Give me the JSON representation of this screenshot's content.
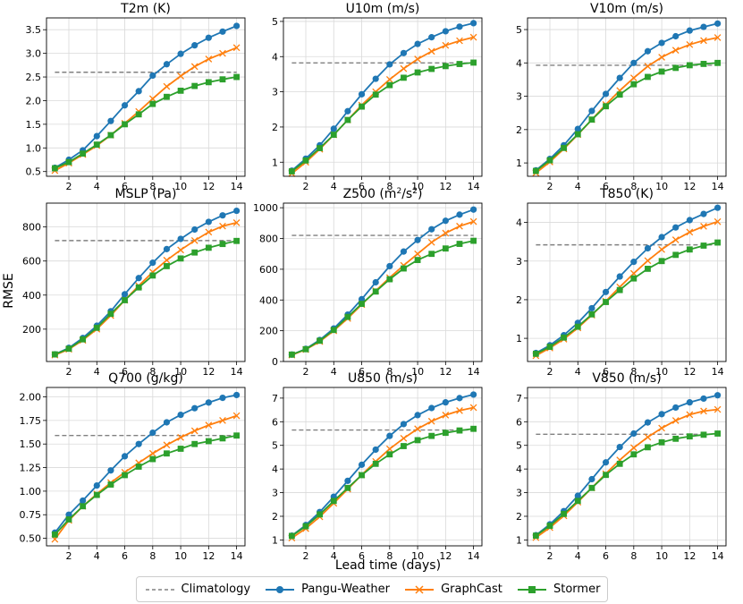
{
  "figure": {
    "ylabel": "RMSE",
    "xlabel": "Lead time (days)"
  },
  "legend": [
    {
      "name": "Climatology",
      "color": "#808080",
      "style": "dashed",
      "marker": "none"
    },
    {
      "name": "Pangu-Weather",
      "color": "#1f77b4",
      "style": "solid",
      "marker": "circle"
    },
    {
      "name": "GraphCast",
      "color": "#ff7f0e",
      "style": "solid",
      "marker": "x"
    },
    {
      "name": "Stormer",
      "color": "#2ca02c",
      "style": "solid",
      "marker": "square"
    }
  ],
  "chart_data": [
    {
      "type": "line",
      "title": "T2m (K)",
      "title_sup": "",
      "title_after": "",
      "xlim": [
        0.4,
        14.6
      ],
      "ylim": [
        0.4,
        3.75
      ],
      "xticks": [
        2,
        4,
        6,
        8,
        10,
        12,
        14
      ],
      "yticks": [
        0.5,
        1.0,
        1.5,
        2.0,
        2.5,
        3.0,
        3.5
      ],
      "ytick_labels": [
        "0.5",
        "1.0",
        "1.5",
        "2.0",
        "2.5",
        "3.0",
        "3.5"
      ],
      "x": [
        1,
        2,
        3,
        4,
        5,
        6,
        7,
        8,
        9,
        10,
        11,
        12,
        13,
        14
      ],
      "climatology": 2.6,
      "series": [
        {
          "name": "Pangu-Weather",
          "values": [
            0.58,
            0.75,
            0.95,
            1.25,
            1.57,
            1.9,
            2.2,
            2.53,
            2.77,
            2.99,
            3.17,
            3.33,
            3.46,
            3.58
          ]
        },
        {
          "name": "GraphCast",
          "values": [
            0.52,
            0.68,
            0.86,
            1.05,
            1.27,
            1.52,
            1.77,
            2.04,
            2.3,
            2.52,
            2.72,
            2.88,
            3.0,
            3.12
          ]
        },
        {
          "name": "Stormer",
          "values": [
            0.57,
            0.7,
            0.88,
            1.07,
            1.27,
            1.5,
            1.71,
            1.93,
            2.08,
            2.21,
            2.31,
            2.39,
            2.45,
            2.5
          ]
        }
      ]
    },
    {
      "type": "line",
      "title": "U10m (m/s)",
      "title_sup": "",
      "title_after": "",
      "xlim": [
        0.4,
        14.6
      ],
      "ylim": [
        0.6,
        5.1
      ],
      "xticks": [
        2,
        4,
        6,
        8,
        10,
        12,
        14
      ],
      "yticks": [
        1,
        2,
        3,
        4,
        5
      ],
      "ytick_labels": [
        "1",
        "2",
        "3",
        "4",
        "5"
      ],
      "x": [
        1,
        2,
        3,
        4,
        5,
        6,
        7,
        8,
        9,
        10,
        11,
        12,
        13,
        14
      ],
      "climatology": 3.82,
      "series": [
        {
          "name": "Pangu-Weather",
          "values": [
            0.76,
            1.1,
            1.48,
            1.95,
            2.45,
            2.93,
            3.37,
            3.78,
            4.1,
            4.36,
            4.55,
            4.72,
            4.85,
            4.95
          ]
        },
        {
          "name": "GraphCast",
          "values": [
            0.68,
            1.0,
            1.37,
            1.78,
            2.2,
            2.62,
            3.0,
            3.35,
            3.66,
            3.93,
            4.15,
            4.32,
            4.45,
            4.55
          ]
        },
        {
          "name": "Stormer",
          "values": [
            0.74,
            1.05,
            1.4,
            1.78,
            2.2,
            2.58,
            2.92,
            3.19,
            3.4,
            3.55,
            3.65,
            3.73,
            3.79,
            3.83
          ]
        }
      ]
    },
    {
      "type": "line",
      "title": "V10m (m/s)",
      "title_sup": "",
      "title_after": "",
      "xlim": [
        0.4,
        14.6
      ],
      "ylim": [
        0.6,
        5.35
      ],
      "xticks": [
        2,
        4,
        6,
        8,
        10,
        12,
        14
      ],
      "yticks": [
        1,
        2,
        3,
        4,
        5
      ],
      "ytick_labels": [
        "1",
        "2",
        "3",
        "4",
        "5"
      ],
      "x": [
        1,
        2,
        3,
        4,
        5,
        6,
        7,
        8,
        9,
        10,
        11,
        12,
        13,
        14
      ],
      "climatology": 3.93,
      "series": [
        {
          "name": "Pangu-Weather",
          "values": [
            0.78,
            1.12,
            1.53,
            2.02,
            2.56,
            3.07,
            3.55,
            4.0,
            4.35,
            4.6,
            4.8,
            4.97,
            5.08,
            5.18
          ]
        },
        {
          "name": "GraphCast",
          "values": [
            0.7,
            1.03,
            1.42,
            1.85,
            2.3,
            2.75,
            3.17,
            3.55,
            3.9,
            4.17,
            4.38,
            4.55,
            4.67,
            4.76
          ]
        },
        {
          "name": "Stormer",
          "values": [
            0.76,
            1.08,
            1.45,
            1.86,
            2.3,
            2.7,
            3.05,
            3.36,
            3.58,
            3.74,
            3.85,
            3.93,
            3.97,
            4.0
          ]
        }
      ]
    },
    {
      "type": "line",
      "title": "MSLP (Pa)",
      "title_sup": "",
      "title_after": "",
      "xlim": [
        0.4,
        14.6
      ],
      "ylim": [
        10,
        940
      ],
      "xticks": [
        2,
        4,
        6,
        8,
        10,
        12,
        14
      ],
      "yticks": [
        200,
        400,
        600,
        800
      ],
      "ytick_labels": [
        "200",
        "400",
        "600",
        "800"
      ],
      "x": [
        1,
        2,
        3,
        4,
        5,
        6,
        7,
        8,
        9,
        10,
        11,
        12,
        13,
        14
      ],
      "climatology": 720,
      "series": [
        {
          "name": "Pangu-Weather",
          "values": [
            52,
            90,
            148,
            220,
            305,
            405,
            500,
            590,
            670,
            730,
            785,
            830,
            868,
            895
          ]
        },
        {
          "name": "GraphCast",
          "values": [
            48,
            82,
            135,
            200,
            280,
            370,
            455,
            535,
            605,
            665,
            720,
            770,
            805,
            825
          ]
        },
        {
          "name": "Stormer",
          "values": [
            52,
            85,
            140,
            208,
            290,
            370,
            445,
            515,
            570,
            615,
            650,
            678,
            700,
            718
          ]
        }
      ]
    },
    {
      "type": "line",
      "title": "Z500 (m",
      "title_sup": "2",
      "title_after": "/s",
      "title_sup2": "2",
      "title_end": ")",
      "xlim": [
        0.4,
        14.6
      ],
      "ylim": [
        0,
        1030
      ],
      "xticks": [
        2,
        4,
        6,
        8,
        10,
        12,
        14
      ],
      "yticks": [
        0,
        200,
        400,
        600,
        800,
        1000
      ],
      "ytick_labels": [
        "0",
        "200",
        "400",
        "600",
        "800",
        "1000"
      ],
      "x": [
        1,
        2,
        3,
        4,
        5,
        6,
        7,
        8,
        9,
        10,
        11,
        12,
        13,
        14
      ],
      "climatology": 820,
      "series": [
        {
          "name": "Pangu-Weather",
          "values": [
            45,
            82,
            140,
            215,
            305,
            405,
            515,
            620,
            715,
            790,
            860,
            915,
            955,
            988
          ]
        },
        {
          "name": "GraphCast",
          "values": [
            42,
            78,
            130,
            200,
            280,
            370,
            460,
            545,
            625,
            700,
            775,
            835,
            880,
            910
          ]
        },
        {
          "name": "Stormer",
          "values": [
            45,
            80,
            135,
            205,
            290,
            375,
            455,
            535,
            605,
            660,
            700,
            735,
            765,
            785
          ]
        }
      ]
    },
    {
      "type": "line",
      "title": "T850 (K)",
      "title_sup": "",
      "title_after": "",
      "xlim": [
        0.4,
        14.6
      ],
      "ylim": [
        0.4,
        4.5
      ],
      "xticks": [
        2,
        4,
        6,
        8,
        10,
        12,
        14
      ],
      "yticks": [
        1,
        2,
        3,
        4
      ],
      "ytick_labels": [
        "1",
        "2",
        "3",
        "4"
      ],
      "x": [
        1,
        2,
        3,
        4,
        5,
        6,
        7,
        8,
        9,
        10,
        11,
        12,
        13,
        14
      ],
      "climatology": 3.42,
      "series": [
        {
          "name": "Pangu-Weather",
          "values": [
            0.62,
            0.82,
            1.08,
            1.4,
            1.78,
            2.2,
            2.6,
            2.98,
            3.33,
            3.62,
            3.87,
            4.06,
            4.22,
            4.38
          ]
        },
        {
          "name": "GraphCast",
          "values": [
            0.55,
            0.75,
            0.98,
            1.27,
            1.6,
            1.96,
            2.33,
            2.68,
            3.01,
            3.3,
            3.55,
            3.75,
            3.9,
            4.02
          ]
        },
        {
          "name": "Stormer",
          "values": [
            0.6,
            0.78,
            1.02,
            1.3,
            1.62,
            1.94,
            2.25,
            2.55,
            2.8,
            3.0,
            3.16,
            3.3,
            3.4,
            3.48
          ]
        }
      ]
    },
    {
      "type": "line",
      "title": "Q700 (g/kg)",
      "title_sup": "",
      "title_after": "",
      "xlim": [
        0.4,
        14.6
      ],
      "ylim": [
        0.42,
        2.1
      ],
      "xticks": [
        2,
        4,
        6,
        8,
        10,
        12,
        14
      ],
      "yticks": [
        0.5,
        0.75,
        1.0,
        1.25,
        1.5,
        1.75,
        2.0
      ],
      "ytick_labels": [
        "0.50",
        "0.75",
        "1.00",
        "1.25",
        "1.50",
        "1.75",
        "2.00"
      ],
      "x": [
        1,
        2,
        3,
        4,
        5,
        6,
        7,
        8,
        9,
        10,
        11,
        12,
        13,
        14
      ],
      "climatology": 1.59,
      "series": [
        {
          "name": "Pangu-Weather",
          "values": [
            0.56,
            0.75,
            0.9,
            1.06,
            1.22,
            1.37,
            1.5,
            1.62,
            1.73,
            1.81,
            1.88,
            1.94,
            1.99,
            2.02
          ]
        },
        {
          "name": "GraphCast",
          "values": [
            0.49,
            0.69,
            0.84,
            0.97,
            1.09,
            1.2,
            1.3,
            1.4,
            1.49,
            1.57,
            1.64,
            1.7,
            1.75,
            1.8
          ]
        },
        {
          "name": "Stormer",
          "values": [
            0.54,
            0.7,
            0.84,
            0.96,
            1.07,
            1.17,
            1.26,
            1.34,
            1.4,
            1.45,
            1.5,
            1.53,
            1.56,
            1.59
          ]
        }
      ]
    },
    {
      "type": "line",
      "title": "U850 (m/s)",
      "title_sup": "",
      "title_after": "",
      "xlim": [
        0.4,
        14.6
      ],
      "ylim": [
        0.75,
        7.45
      ],
      "xticks": [
        2,
        4,
        6,
        8,
        10,
        12,
        14
      ],
      "yticks": [
        1,
        2,
        3,
        4,
        5,
        6,
        7
      ],
      "ytick_labels": [
        "1",
        "2",
        "3",
        "4",
        "5",
        "6",
        "7"
      ],
      "x": [
        1,
        2,
        3,
        4,
        5,
        6,
        7,
        8,
        9,
        10,
        11,
        12,
        13,
        14
      ],
      "climatology": 5.65,
      "series": [
        {
          "name": "Pangu-Weather",
          "values": [
            1.18,
            1.63,
            2.18,
            2.83,
            3.5,
            4.18,
            4.82,
            5.4,
            5.9,
            6.28,
            6.58,
            6.82,
            7.0,
            7.15
          ]
        },
        {
          "name": "GraphCast",
          "values": [
            1.08,
            1.48,
            1.98,
            2.55,
            3.15,
            3.75,
            4.32,
            4.85,
            5.3,
            5.7,
            6.02,
            6.28,
            6.47,
            6.6
          ]
        },
        {
          "name": "Stormer",
          "values": [
            1.17,
            1.58,
            2.08,
            2.65,
            3.2,
            3.74,
            4.22,
            4.62,
            4.97,
            5.22,
            5.4,
            5.53,
            5.63,
            5.7
          ]
        }
      ]
    },
    {
      "type": "line",
      "title": "V850 (m/s)",
      "title_sup": "",
      "title_after": "",
      "xlim": [
        0.4,
        14.6
      ],
      "ylim": [
        0.75,
        7.45
      ],
      "xticks": [
        2,
        4,
        6,
        8,
        10,
        12,
        14
      ],
      "yticks": [
        1,
        2,
        3,
        4,
        5,
        6,
        7
      ],
      "ytick_labels": [
        "1",
        "2",
        "3",
        "4",
        "5",
        "6",
        "7"
      ],
      "x": [
        1,
        2,
        3,
        4,
        5,
        6,
        7,
        8,
        9,
        10,
        11,
        12,
        13,
        14
      ],
      "climatology": 5.47,
      "series": [
        {
          "name": "Pangu-Weather",
          "values": [
            1.2,
            1.66,
            2.22,
            2.87,
            3.57,
            4.28,
            4.93,
            5.5,
            5.97,
            6.32,
            6.6,
            6.82,
            6.98,
            7.12
          ]
        },
        {
          "name": "GraphCast",
          "values": [
            1.1,
            1.52,
            2.02,
            2.6,
            3.2,
            3.8,
            4.38,
            4.9,
            5.35,
            5.73,
            6.05,
            6.3,
            6.45,
            6.52
          ]
        },
        {
          "name": "Stormer",
          "values": [
            1.18,
            1.6,
            2.1,
            2.65,
            3.2,
            3.75,
            4.22,
            4.62,
            4.92,
            5.13,
            5.28,
            5.38,
            5.45,
            5.5
          ]
        }
      ]
    }
  ]
}
